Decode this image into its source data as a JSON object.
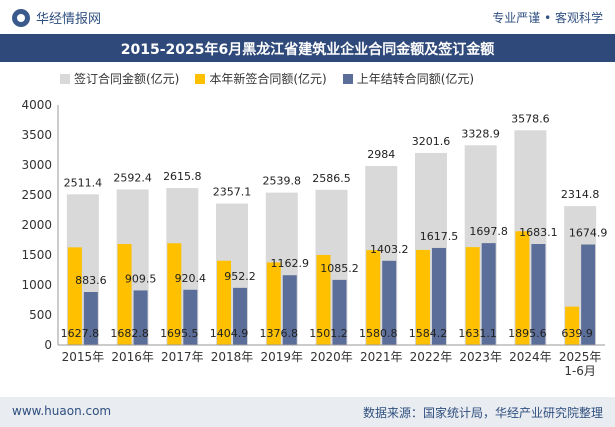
{
  "header": {
    "brand": "华经情报网",
    "tagline": "专业严谨 • 客观科学"
  },
  "title": "2015-2025年6月黑龙江省建筑业企业合同金额及签订金额",
  "footer": {
    "website": "www.huaon.com",
    "source": "数据来源：国家统计局，华经产业研究院整理"
  },
  "colors": {
    "total": "#d9d9d9",
    "new": "#ffc000",
    "carryover": "#5b6d99",
    "titlebar": "#2f4a7a"
  },
  "chart_data": {
    "type": "bar",
    "categories": [
      "2015年",
      "2016年",
      "2017年",
      "2018年",
      "2019年",
      "2020年",
      "2021年",
      "2022年",
      "2023年",
      "2024年",
      "2025年\n1-6月"
    ],
    "ylim": [
      0,
      4000
    ],
    "yticks": [
      0,
      500,
      1000,
      1500,
      2000,
      2500,
      3000,
      3500,
      4000
    ],
    "series": [
      {
        "name": "签订合同金额(亿元)",
        "values": [
          2511.4,
          2592.4,
          2615.8,
          2357.1,
          2539.8,
          2586.5,
          2984,
          3201.6,
          3328.9,
          3578.6,
          2314.8
        ]
      },
      {
        "name": "本年新签合同额(亿元)",
        "values": [
          1627.8,
          1682.8,
          1695.5,
          1404.9,
          1376.8,
          1501.2,
          1580.8,
          1584.2,
          1631.1,
          1895.6,
          639.9
        ]
      },
      {
        "name": "上年结转合同额(亿元)",
        "values": [
          883.6,
          909.5,
          920.4,
          952.2,
          1162.9,
          1085.2,
          1403.2,
          1617.5,
          1697.8,
          1683.1,
          1674.9
        ]
      }
    ]
  }
}
